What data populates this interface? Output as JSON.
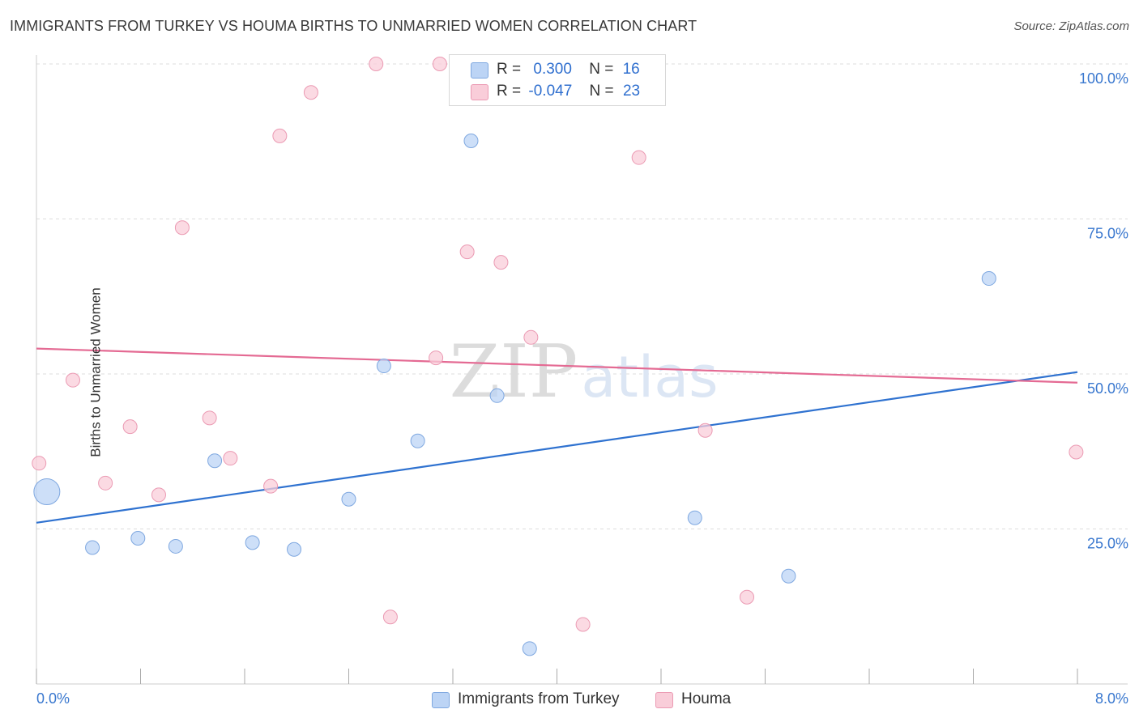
{
  "header": {
    "title": "IMMIGRANTS FROM TURKEY VS HOUMA BIRTHS TO UNMARRIED WOMEN CORRELATION CHART",
    "source": "Source: ZipAtlas.com"
  },
  "watermark": {
    "zip": "ZIP",
    "atlas": "atlas"
  },
  "legend": {
    "series1": {
      "r_label": "R =",
      "r_value": "0.300",
      "n_label": "N =",
      "n_value": "16"
    },
    "series2": {
      "r_label": "R =",
      "r_value": "-0.047",
      "n_label": "N =",
      "n_value": "23"
    }
  },
  "colors": {
    "blue_fill": "#bcd4f5",
    "blue_stroke": "#7fa8e0",
    "blue_line": "#2f72d0",
    "pink_fill": "#f9cdd9",
    "pink_stroke": "#eb9ab3",
    "pink_line": "#e46a93",
    "tick_text": "#3a78cf",
    "grid": "#dddddd"
  },
  "chart_data": {
    "type": "scatter",
    "title": "IMMIGRANTS FROM TURKEY VS HOUMA BIRTHS TO UNMARRIED WOMEN CORRELATION CHART",
    "xlabel": "",
    "ylabel": "Births to Unmarried Women",
    "xlim": [
      0,
      8
    ],
    "ylim": [
      0,
      102
    ],
    "x_tick_labels": [
      "0.0%",
      "8.0%"
    ],
    "y_ticks": [
      25,
      50,
      75,
      100
    ],
    "y_tick_labels": [
      "25.0%",
      "50.0%",
      "75.0%",
      "100.0%"
    ],
    "grid": true,
    "legend_position": "top-center",
    "series": [
      {
        "name": "Immigrants from Turkey",
        "color": "blue",
        "points": [
          {
            "x": 0.08,
            "y": 31.0,
            "size": "large"
          },
          {
            "x": 0.43,
            "y": 22.0
          },
          {
            "x": 0.78,
            "y": 23.5
          },
          {
            "x": 1.07,
            "y": 22.2
          },
          {
            "x": 1.37,
            "y": 36.0
          },
          {
            "x": 1.66,
            "y": 22.8
          },
          {
            "x": 1.98,
            "y": 21.7
          },
          {
            "x": 2.4,
            "y": 29.8
          },
          {
            "x": 2.67,
            "y": 51.3
          },
          {
            "x": 2.93,
            "y": 39.2
          },
          {
            "x": 3.34,
            "y": 87.6
          },
          {
            "x": 3.54,
            "y": 46.5
          },
          {
            "x": 3.79,
            "y": 5.7
          },
          {
            "x": 5.06,
            "y": 26.8
          },
          {
            "x": 5.78,
            "y": 17.4
          },
          {
            "x": 7.32,
            "y": 65.4
          }
        ],
        "trend": {
          "x0": 0,
          "y0": 26.0,
          "x1": 8,
          "y1": 50.3
        }
      },
      {
        "name": "Houma",
        "color": "pink",
        "points": [
          {
            "x": 0.02,
            "y": 35.6
          },
          {
            "x": 0.28,
            "y": 49.0
          },
          {
            "x": 0.53,
            "y": 32.4
          },
          {
            "x": 0.72,
            "y": 41.5
          },
          {
            "x": 0.94,
            "y": 30.5
          },
          {
            "x": 1.12,
            "y": 73.6
          },
          {
            "x": 1.33,
            "y": 42.9
          },
          {
            "x": 1.49,
            "y": 36.4
          },
          {
            "x": 1.8,
            "y": 31.9
          },
          {
            "x": 1.87,
            "y": 88.4
          },
          {
            "x": 2.11,
            "y": 95.4
          },
          {
            "x": 2.61,
            "y": 100.0
          },
          {
            "x": 2.72,
            "y": 10.8
          },
          {
            "x": 3.07,
            "y": 52.6
          },
          {
            "x": 3.1,
            "y": 100.0
          },
          {
            "x": 3.31,
            "y": 69.7
          },
          {
            "x": 3.57,
            "y": 68.0
          },
          {
            "x": 3.8,
            "y": 55.9
          },
          {
            "x": 4.2,
            "y": 9.6
          },
          {
            "x": 4.63,
            "y": 84.9
          },
          {
            "x": 5.14,
            "y": 40.9
          },
          {
            "x": 5.46,
            "y": 14.0
          },
          {
            "x": 7.99,
            "y": 37.4
          }
        ],
        "trend": {
          "x0": 0,
          "y0": 54.1,
          "x1": 8,
          "y1": 48.6
        }
      }
    ]
  }
}
